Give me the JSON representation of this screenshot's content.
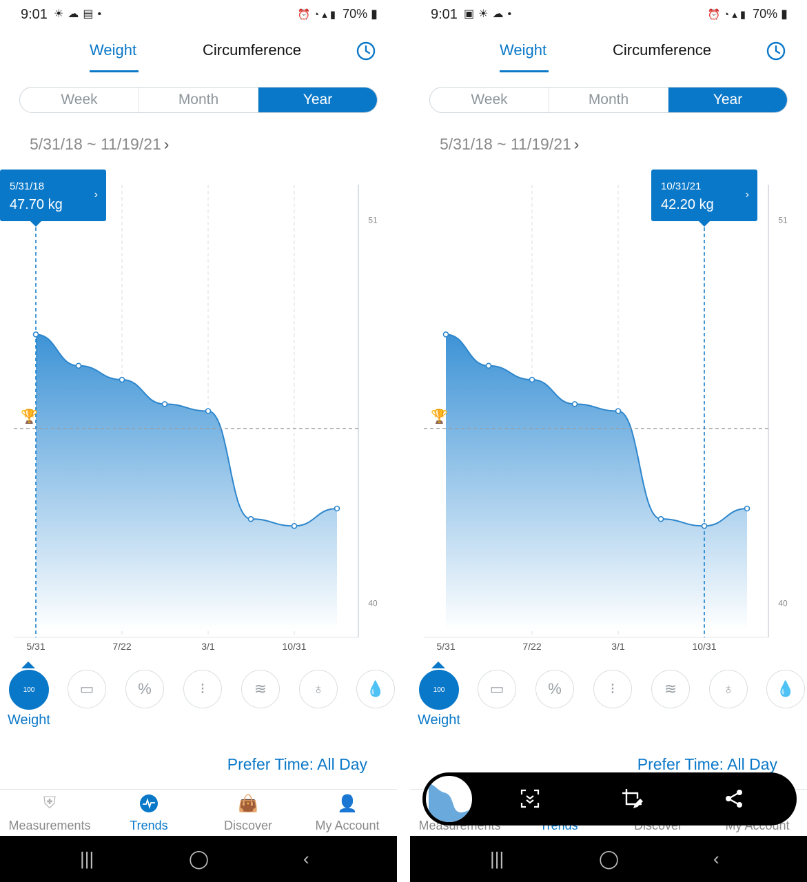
{
  "status_bar": {
    "time": "9:01",
    "battery": "70%"
  },
  "tabs": {
    "weight": "Weight",
    "circumference": "Circumference"
  },
  "period": {
    "week": "Week",
    "month": "Month",
    "year": "Year",
    "selected": "Year"
  },
  "date_range": "5/31/18 ~ 11/19/21",
  "chart_data": {
    "type": "area",
    "x": [
      "5/31",
      "",
      "7/22",
      "",
      "3/1",
      "",
      "10/31",
      ""
    ],
    "x_tick_labels": [
      "5/31",
      "7/22",
      "3/1",
      "10/31"
    ],
    "values": [
      47.7,
      46.8,
      46.4,
      45.7,
      45.5,
      42.4,
      42.2,
      42.7
    ],
    "y_tick_labels": [
      "51",
      "40"
    ],
    "goal": 45.0,
    "ylim": [
      39.0,
      52.0
    ],
    "colors": {
      "line": "#2d86cc",
      "fill_top": "#3d93d6",
      "fill_bottom": "#ffffff"
    }
  },
  "screens": [
    {
      "tooltip": {
        "date": "5/31/18",
        "value": "47.70 kg",
        "point_index": 0
      },
      "show_screenshot_toolbar": false
    },
    {
      "tooltip": {
        "date": "10/31/21",
        "value": "42.20 kg",
        "point_index": 6
      },
      "show_screenshot_toolbar": true
    }
  ],
  "metrics": {
    "selected_label": "Weight",
    "items": [
      "weight-scale-icon",
      "bmi-ruler-icon",
      "percent-icon",
      "spine-icon",
      "muscle-icon",
      "kidney-icon",
      "water-drops-icon"
    ]
  },
  "prefer_time": "Prefer Time: All Day",
  "bottom_nav": {
    "measurements": "Measurements",
    "trends": "Trends",
    "discover": "Discover",
    "account": "My Account"
  },
  "accent_color": "#0a78c8"
}
